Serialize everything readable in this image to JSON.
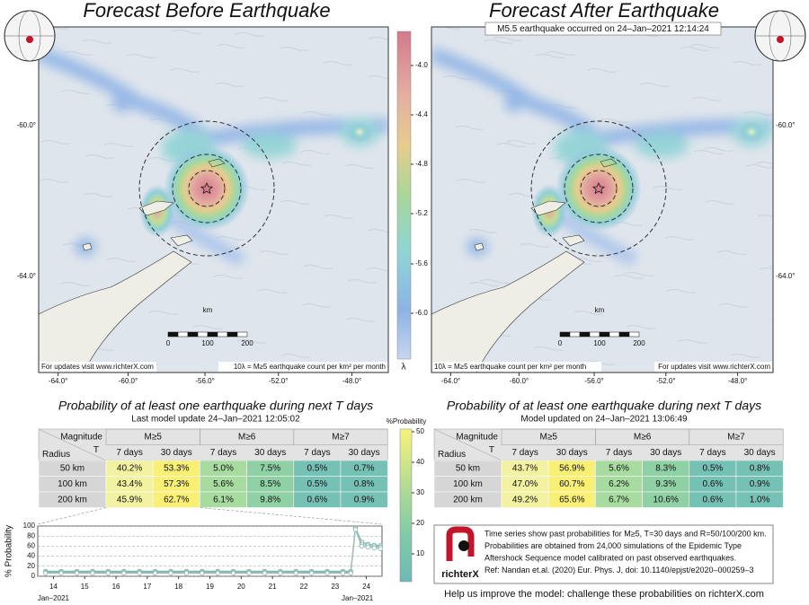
{
  "left_panel": {
    "title": "Forecast Before Earthquake",
    "lat_labels": [
      "-60.0°",
      "-64.0°"
    ],
    "lon_labels": [
      "-64.0°",
      "-60.0°",
      "-56.0°",
      "-52.0°",
      "-48.0°"
    ],
    "scale_unit": "km",
    "scale_labels": [
      "0",
      "100",
      "200"
    ],
    "note_updates": "For updates visit www.richterX.com",
    "note_units": "10λ = M≥5 earthquake count per km² per month"
  },
  "right_panel": {
    "title": "Forecast After Earthquake",
    "annotation": "M5.5 earthquake occurred on 24–Jan–2021 12:14:24",
    "lat_labels": [
      "-60.0°",
      "-64.0°"
    ],
    "lon_labels": [
      "-64.0°",
      "-60.0°",
      "-56.0°",
      "-52.0°",
      "-48.0°"
    ],
    "scale_unit": "km",
    "scale_labels": [
      "0",
      "100",
      "200"
    ],
    "note_updates": "For updates visit www.richterX.com",
    "note_units": "10λ = M≥5 earthquake count per km² per month"
  },
  "lambda_colorbar": {
    "tick_labels": [
      "-4.0",
      "-4.4",
      "-4.8",
      "-5.2",
      "-5.6",
      "-6.0"
    ],
    "label": "λ"
  },
  "left_table": {
    "title": "Probability of at least one earthquake during next T days",
    "subtitle": "Last model update 24–Jan–2021 12:05:02",
    "header_magnitude": "Magnitude",
    "header_radius": "Radius",
    "header_t": "T",
    "magnitudes": [
      "M≥5",
      "M≥6",
      "M≥7"
    ],
    "periods": [
      "7 days",
      "30 days",
      "7 days",
      "30 days",
      "7 days",
      "30 days"
    ],
    "rows": [
      [
        "50 km",
        "40.2%",
        "53.3%",
        "5.0%",
        "7.5%",
        "0.5%",
        "0.7%"
      ],
      [
        "100 km",
        "43.4%",
        "57.3%",
        "5.6%",
        "8.5%",
        "0.5%",
        "0.8%"
      ],
      [
        "200 km",
        "45.9%",
        "62.7%",
        "6.1%",
        "9.8%",
        "0.6%",
        "0.9%"
      ]
    ]
  },
  "right_table": {
    "title": "Probability of at least one earthquake during next T days",
    "subtitle": "Model updated on 24–Jan–2021 13:06:49",
    "header_magnitude": "Magnitude",
    "header_radius": "Radius",
    "header_t": "T",
    "magnitudes": [
      "M≥5",
      "M≥6",
      "M≥7"
    ],
    "periods": [
      "7 days",
      "30 days",
      "7 days",
      "30 days",
      "7 days",
      "30 days"
    ],
    "rows": [
      [
        "50 km",
        "43.7%",
        "56.9%",
        "5.6%",
        "8.3%",
        "0.5%",
        "0.8%"
      ],
      [
        "100 km",
        "47.0%",
        "60.7%",
        "6.2%",
        "9.3%",
        "0.6%",
        "0.9%"
      ],
      [
        "200 km",
        "49.2%",
        "65.6%",
        "6.7%",
        "10.6%",
        "0.6%",
        "1.0%"
      ]
    ]
  },
  "probability_colorbar": {
    "label": "%Probability",
    "tick_labels": [
      "50",
      "40",
      "30",
      "20",
      "10"
    ]
  },
  "chart_data": {
    "type": "line",
    "y_label": "% Probability",
    "x_label_start": "Jan–2021",
    "x_label_end": "Jan–2021",
    "x": [
      13.75,
      14.25,
      14.75,
      15.25,
      15.75,
      16.25,
      16.75,
      17.25,
      17.75,
      18.25,
      18.75,
      19.25,
      19.75,
      20.25,
      20.75,
      21.25,
      21.75,
      22.25,
      22.75,
      23.25,
      23.5,
      23.65,
      23.85,
      24.05,
      24.25,
      24.45
    ],
    "series": [
      {
        "color": "#7fb5ad",
        "values": [
          10,
          10,
          10,
          10,
          10,
          10,
          10,
          10,
          10,
          10,
          10,
          10,
          10,
          10,
          10,
          10,
          10,
          10,
          10,
          10,
          10,
          97,
          68,
          64,
          62,
          61
        ]
      },
      {
        "color": "#8fb9b3",
        "values": [
          8,
          8,
          8,
          8,
          8,
          8,
          8,
          8,
          8,
          8,
          8,
          8,
          8,
          8,
          8,
          8,
          8,
          8,
          8,
          8,
          8,
          95,
          64,
          61,
          59,
          58
        ]
      },
      {
        "color": "#9ebfba",
        "values": [
          6,
          6,
          6,
          6,
          6,
          6,
          6,
          6,
          6,
          6,
          6,
          6,
          6,
          6,
          6,
          6,
          6,
          6,
          6,
          6,
          6,
          93,
          60,
          58,
          56,
          55
        ]
      }
    ],
    "xlim": [
      13.5,
      24.5
    ],
    "xticks": [
      14,
      15,
      16,
      17,
      18,
      19,
      20,
      21,
      22,
      23,
      24
    ],
    "ylim": [
      0,
      100
    ],
    "yticks": [
      0,
      20,
      40,
      60,
      80,
      100
    ],
    "grid": true
  },
  "info": {
    "brand": "richterX",
    "lines": [
      "Time series show past probabilities for M≥5, T=30 days and R=50/100/200 km.",
      "Probabilities are obtained from 24,000 simulations of the Epidemic Type",
      "Aftershock Sequence model calibrated on past observed earthquakes.",
      "Ref: Nandan et.al. (2020) Eur. Phys. J, doi: 10.1140/epjst/e2020–000259–3"
    ],
    "help": "Help us improve the model: challenge these probabilities on richterX.com"
  }
}
